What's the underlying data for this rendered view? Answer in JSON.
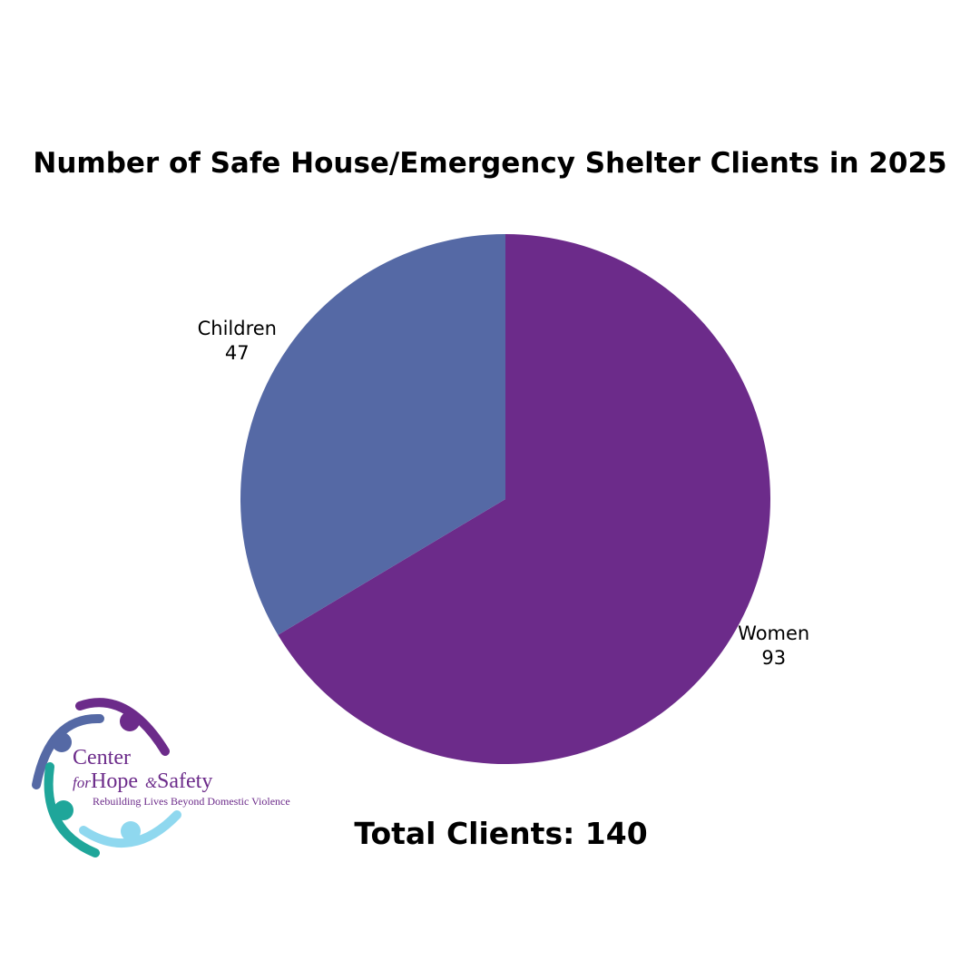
{
  "chart_data": {
    "type": "pie",
    "title": "Number of Safe House/Emergency Shelter Clients in 2025",
    "categories": [
      "Women",
      "Children"
    ],
    "values": [
      93,
      47
    ],
    "colors": [
      "#6c2b8a",
      "#5569a5"
    ],
    "annotation": "Total Clients: 140"
  },
  "logo": {
    "line1": "Center",
    "line2a": "for",
    "line2b": "Hope",
    "line2c": "&",
    "line2d": "Safety",
    "tagline": "Rebuilding Lives Beyond Domestic Violence"
  }
}
